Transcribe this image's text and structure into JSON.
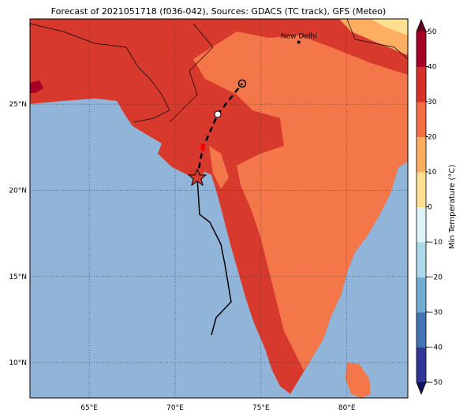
{
  "map": {
    "title": "Forecast of 2021051718 (f036-042), Sources: GDACS (TC track), GFS (Meteo)",
    "lon_range": [
      61.55,
      83.55
    ],
    "lat_range": [
      7.95,
      29.95
    ],
    "lon_ticks": [
      {
        "value": 65,
        "label": "65°E"
      },
      {
        "value": 70,
        "label": "70°E"
      },
      {
        "value": 75,
        "label": "75°E"
      },
      {
        "value": 80,
        "label": "80°E"
      }
    ],
    "lat_ticks": [
      {
        "value": 10,
        "label": "10°N"
      },
      {
        "value": 15,
        "label": "15°N"
      },
      {
        "value": 20,
        "label": "20°N"
      },
      {
        "value": 25,
        "label": "25°N"
      }
    ],
    "city": {
      "name": "New Delhi",
      "lon": 77.2,
      "lat": 28.6
    },
    "colorbar": {
      "label": "Min Temperature (°C)",
      "range": [
        -50,
        50
      ],
      "ticks": [
        {
          "value": -50,
          "label": "−50"
        },
        {
          "value": -40,
          "label": "−40"
        },
        {
          "value": -30,
          "label": "−30"
        },
        {
          "value": -20,
          "label": "−20"
        },
        {
          "value": -10,
          "label": "−10"
        },
        0,
        10,
        20,
        30,
        40,
        50
      ],
      "colors": [
        "#313695",
        "#4575b4",
        "#74add1",
        "#abd9e9",
        "#e0f3f8",
        "#fee090",
        "#fdae61",
        "#f46d43",
        "#d73027",
        "#a50026"
      ],
      "under_color": "#14145a",
      "over_color": "#67001f"
    }
  }
}
